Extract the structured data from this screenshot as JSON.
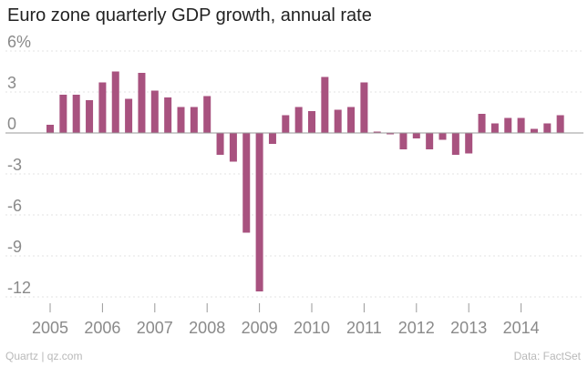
{
  "page": {
    "title": "Euro zone quarterly GDP growth, annual rate",
    "footer_left": "Quartz | qz.com",
    "footer_right": "Data: FactSet"
  },
  "colors": {
    "bar": "#a8527f",
    "grid": "#e3e3e3",
    "zero": "#9a9a9a",
    "tick": "#8a8a8a"
  },
  "chart_data": {
    "type": "bar",
    "title": "Euro zone quarterly GDP growth, annual rate",
    "xlabel": "",
    "ylabel": "",
    "ylim": [
      -13,
      6.5
    ],
    "yticks": [
      6,
      3,
      0,
      -3,
      -6,
      -9,
      -12
    ],
    "ytick_labels": [
      "6%",
      "3",
      "0",
      "-3",
      "-6",
      "-9",
      "-12"
    ],
    "grid": true,
    "categories": [
      "2005 Q1",
      "2005 Q2",
      "2005 Q3",
      "2005 Q4",
      "2006 Q1",
      "2006 Q2",
      "2006 Q3",
      "2006 Q4",
      "2007 Q1",
      "2007 Q2",
      "2007 Q3",
      "2007 Q4",
      "2008 Q1",
      "2008 Q2",
      "2008 Q3",
      "2008 Q4",
      "2009 Q1",
      "2009 Q2",
      "2009 Q3",
      "2009 Q4",
      "2010 Q1",
      "2010 Q2",
      "2010 Q3",
      "2010 Q4",
      "2011 Q1",
      "2011 Q2",
      "2011 Q3",
      "2011 Q4",
      "2012 Q1",
      "2012 Q2",
      "2012 Q3",
      "2012 Q4",
      "2013 Q1",
      "2013 Q2",
      "2013 Q3",
      "2013 Q4",
      "2014 Q1",
      "2014 Q2",
      "2014 Q3",
      "2014 Q4"
    ],
    "values": [
      0.6,
      2.8,
      2.8,
      2.4,
      3.7,
      4.5,
      2.5,
      4.4,
      3.1,
      2.6,
      1.9,
      1.9,
      2.7,
      -1.6,
      -2.1,
      -7.3,
      -11.6,
      -0.8,
      1.3,
      1.9,
      1.6,
      4.1,
      1.7,
      1.9,
      3.7,
      0.1,
      -0.1,
      -1.2,
      -0.4,
      -1.2,
      -0.5,
      -1.6,
      -1.5,
      1.4,
      0.7,
      1.1,
      1.1,
      0.3,
      0.7,
      1.3
    ],
    "xtick_labels": [
      "2005",
      "2006",
      "2007",
      "2008",
      "2009",
      "2010",
      "2011",
      "2012",
      "2013",
      "2014"
    ],
    "source": "Data: FactSet"
  }
}
